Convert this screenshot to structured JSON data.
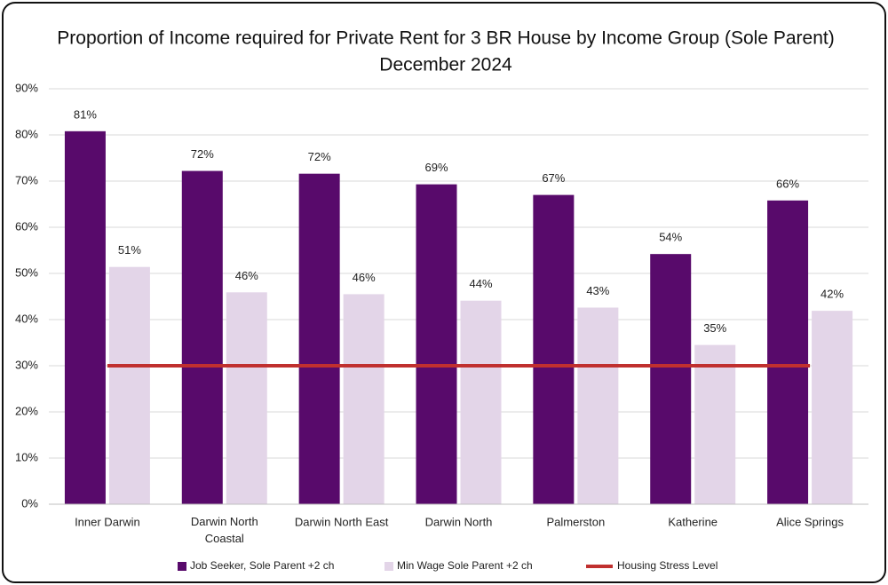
{
  "chart_data": {
    "type": "bar",
    "title": "Proportion of Income required for Private Rent for 3 BR House by Income Group (Sole Parent)",
    "subtitle": "December 2024",
    "categories": [
      "Inner Darwin",
      "Darwin North Coastal",
      "Darwin North East",
      "Darwin North",
      "Palmerston",
      "Katherine",
      "Alice Springs"
    ],
    "series": [
      {
        "name": "Job Seeker, Sole Parent +2 ch",
        "type": "bar",
        "color": "#580a6b",
        "values": [
          80.8,
          72.2,
          71.6,
          69.3,
          67.0,
          54.2,
          65.8
        ],
        "value_labels": [
          "81%",
          "72%",
          "72%",
          "69%",
          "67%",
          "54%",
          "66%"
        ]
      },
      {
        "name": "Min Wage Sole Parent +2 ch",
        "type": "bar",
        "color": "#e3d5e8",
        "values": [
          51.4,
          45.9,
          45.5,
          44.1,
          42.6,
          34.5,
          41.9
        ],
        "value_labels": [
          "51%",
          "46%",
          "46%",
          "44%",
          "43%",
          "35%",
          "42%"
        ]
      },
      {
        "name": "Housing Stress Level",
        "type": "line",
        "color": "#c0302f",
        "values": [
          30,
          30,
          30,
          30,
          30,
          30,
          30
        ]
      }
    ],
    "ylim": [
      0,
      90
    ],
    "yticks": [
      {
        "value": 0,
        "label": "0%"
      },
      {
        "value": 10,
        "label": "10%"
      },
      {
        "value": 20,
        "label": "20%"
      },
      {
        "value": 30,
        "label": "30%"
      },
      {
        "value": 40,
        "label": "40%"
      },
      {
        "value": 50,
        "label": "50%"
      },
      {
        "value": 60,
        "label": "60%"
      },
      {
        "value": 70,
        "label": "70%"
      },
      {
        "value": 80,
        "label": "80%"
      },
      {
        "value": 90,
        "label": "90%"
      }
    ],
    "grid": true,
    "legend": "bottom"
  }
}
